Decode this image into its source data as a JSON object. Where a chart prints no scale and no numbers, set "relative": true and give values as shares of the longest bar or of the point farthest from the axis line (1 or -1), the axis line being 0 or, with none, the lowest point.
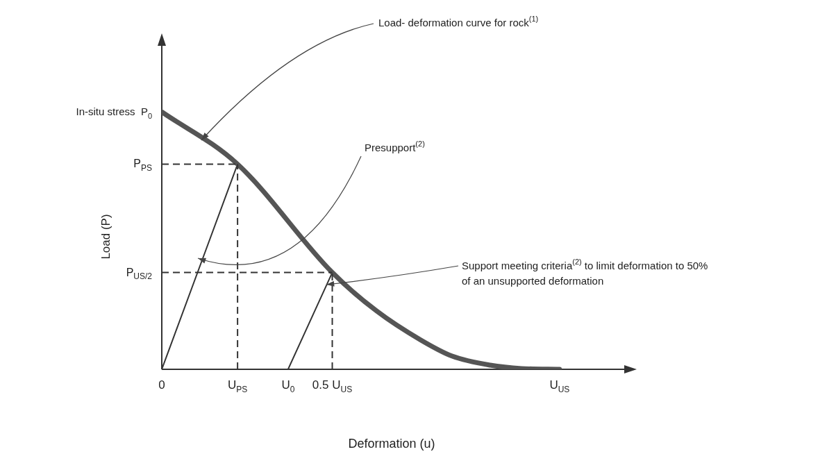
{
  "chart_data": {
    "type": "line",
    "relative": true,
    "xlabel": "Deformation (u)",
    "ylabel": "Load (P)",
    "marker": "none",
    "categories": [
      "0",
      null,
      null,
      null,
      null,
      null,
      null,
      null,
      null,
      null,
      null,
      null,
      "U$_{PS}$",
      null,
      null,
      null,
      null,
      null,
      null,
      null,
      "U$_{0}$",
      null,
      null,
      null,
      null,
      null,
      null,
      "0.5 U$_{US}$",
      null,
      null,
      null,
      null,
      null,
      null,
      null,
      null,
      null,
      null,
      null,
      null,
      null,
      null,
      null,
      null,
      null,
      null,
      null,
      null,
      null,
      null,
      null,
      null,
      null,
      null,
      null,
      null,
      null,
      null,
      null,
      null,
      null,
      null,
      null,
      "U$_{US}$",
      null,
      null,
      null,
      null,
      null,
      null,
      null,
      null,
      null,
      null,
      null,
      null
    ],
    "series": [
      {
        "color": "#555555",
        "line_style": "solid",
        "values": [
          1,
          null,
          null,
          null,
          null,
          null,
          null,
          null,
          null,
          null,
          null,
          null,
          0.797,
          null,
          null,
          null,
          null,
          null,
          null,
          null,
          null,
          null,
          null,
          null,
          null,
          null,
          null,
          0.376,
          null,
          null,
          null,
          null,
          null,
          null,
          0.227,
          null,
          null,
          null,
          null,
          null,
          null,
          0.114,
          null,
          null,
          null,
          null,
          0.051,
          null,
          null,
          null,
          null,
          null,
          0.016,
          null,
          null,
          null,
          null,
          0.003,
          null,
          null,
          null,
          null,
          null,
          0,
          null,
          null,
          null,
          null,
          null,
          null,
          null,
          null,
          null,
          null,
          null,
          null
        ]
      },
      {
        "color": "#333333",
        "line_style": "solid",
        "values": [
          0,
          null,
          null,
          null,
          null,
          null,
          null,
          null,
          null,
          null,
          null,
          null,
          0.797,
          null,
          null,
          null,
          null,
          null,
          null,
          null,
          null,
          null,
          null,
          null,
          null,
          null,
          null,
          null,
          null,
          null,
          null,
          null,
          null,
          null,
          null,
          null,
          null,
          null,
          null,
          null,
          null,
          null,
          null,
          null,
          null,
          null,
          null,
          null,
          null,
          null,
          null,
          null,
          null,
          null,
          null,
          null,
          null,
          null,
          null,
          null,
          null,
          null,
          null,
          null,
          null,
          null,
          null,
          null,
          null,
          null,
          null,
          null,
          null,
          null,
          null,
          null
        ]
      },
      {
        "color": "#333333",
        "line_style": "solid",
        "values": [
          null,
          null,
          null,
          null,
          null,
          null,
          null,
          null,
          null,
          null,
          null,
          null,
          null,
          null,
          null,
          null,
          null,
          null,
          null,
          null,
          0,
          null,
          null,
          null,
          null,
          null,
          null,
          0.376,
          null,
          null,
          null,
          null,
          null,
          null,
          null,
          null,
          null,
          null,
          null,
          null,
          null,
          null,
          null,
          null,
          null,
          null,
          null,
          null,
          null,
          null,
          null,
          null,
          null,
          null,
          null,
          null,
          null,
          null,
          null,
          null,
          null,
          null,
          null,
          null,
          null,
          null,
          null,
          null,
          null,
          null,
          null,
          null,
          null,
          null,
          null,
          null
        ]
      }
    ],
    "ref_lines": [
      {
        "axis": "y",
        "value": 0.797,
        "label": "P$_{PS}$",
        "color": "#333333",
        "line_style": "dashed"
      },
      {
        "axis": "y",
        "value": 0.376,
        "label": "P$_{US/2}$",
        "color": "#333333",
        "line_style": "dashed"
      },
      {
        "axis": "x",
        "value": "U$_{PS}$",
        "color": "#333333",
        "line_style": "dashed"
      },
      {
        "axis": "x",
        "value": "0.5 U$_{US}$",
        "color": "#333333",
        "line_style": "dashed"
      }
    ],
    "annotations": [
      "In-situ stress  P$_{0}$",
      "Load- deformation curve for rock$^{(1)}$",
      "Presupport$^{(2)}$",
      "Support meeting criteria$^{(2)}$ to limit deformation to 50% of an unsupported deformation"
    ]
  }
}
